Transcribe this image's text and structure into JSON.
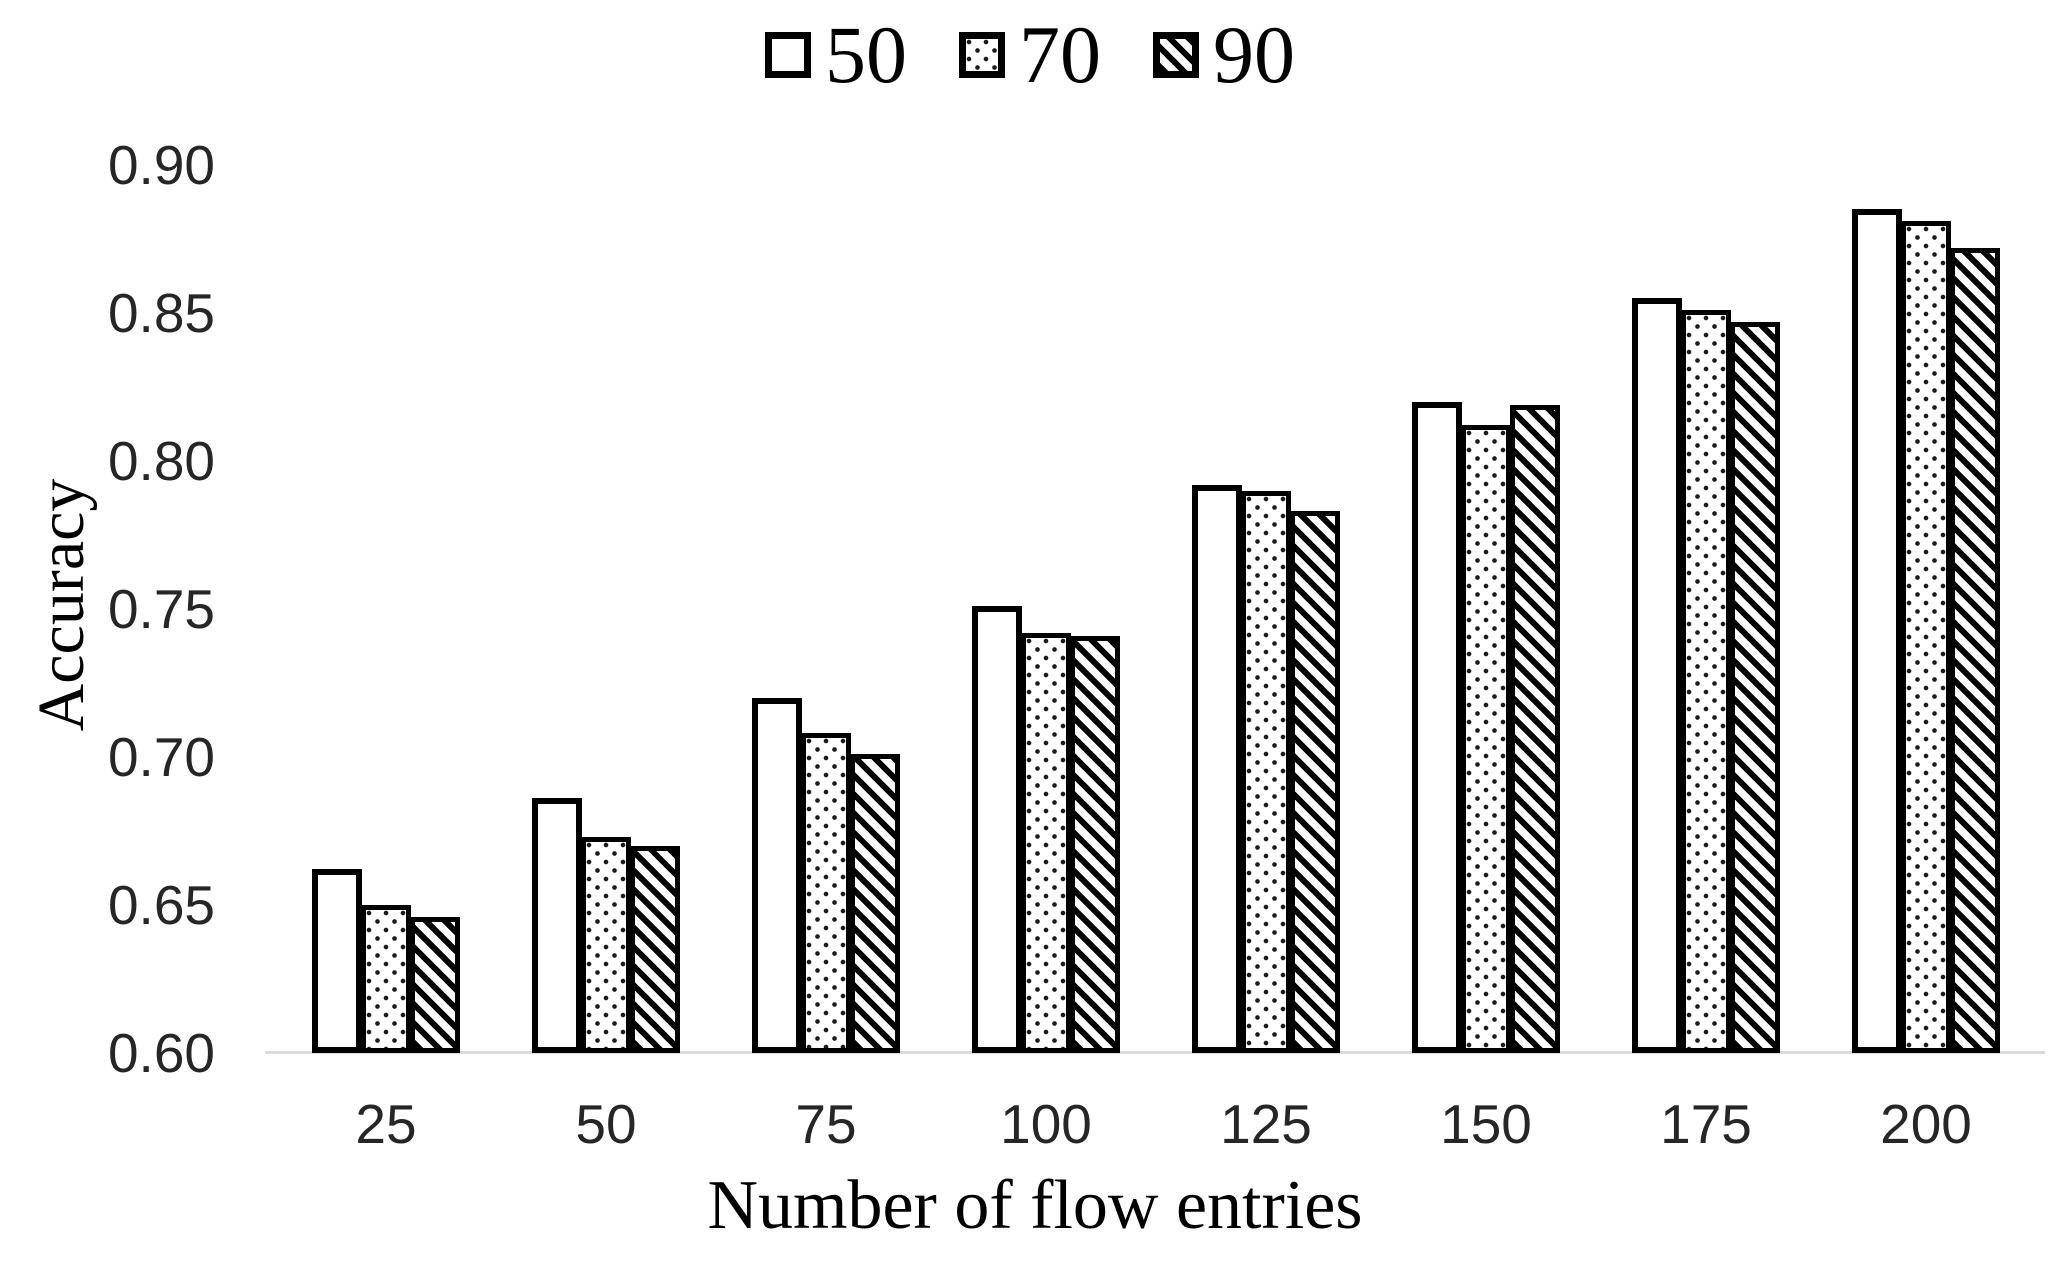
{
  "chart_data": {
    "type": "bar",
    "title": "",
    "xlabel": "Number of flow entries",
    "ylabel": "Accuracy",
    "categories": [
      "25",
      "50",
      "75",
      "100",
      "125",
      "150",
      "175",
      "200"
    ],
    "series": [
      {
        "name": "50",
        "pattern": "solid-white",
        "values": [
          0.662,
          0.686,
          0.72,
          0.751,
          0.792,
          0.82,
          0.855,
          0.885
        ]
      },
      {
        "name": "70",
        "pattern": "dotted",
        "values": [
          0.65,
          0.673,
          0.708,
          0.742,
          0.79,
          0.812,
          0.851,
          0.881
        ]
      },
      {
        "name": "90",
        "pattern": "diagonal-hatch",
        "values": [
          0.646,
          0.67,
          0.701,
          0.741,
          0.783,
          0.819,
          0.847,
          0.872
        ]
      }
    ],
    "ylim": [
      0.6,
      0.9
    ],
    "ytick_step": 0.05,
    "ytick_labels": [
      "0.90",
      "0.85",
      "0.80",
      "0.75",
      "0.70",
      "0.65",
      "0.60"
    ],
    "legend_position": "top",
    "grid": false,
    "colors": {
      "bar_outline": "#000000",
      "pattern_foreground": "#000000",
      "bar_fill": "#ffffff",
      "axis_line": "#d9d9d9",
      "tick_text": "#262626",
      "title_text": "#000000"
    }
  }
}
